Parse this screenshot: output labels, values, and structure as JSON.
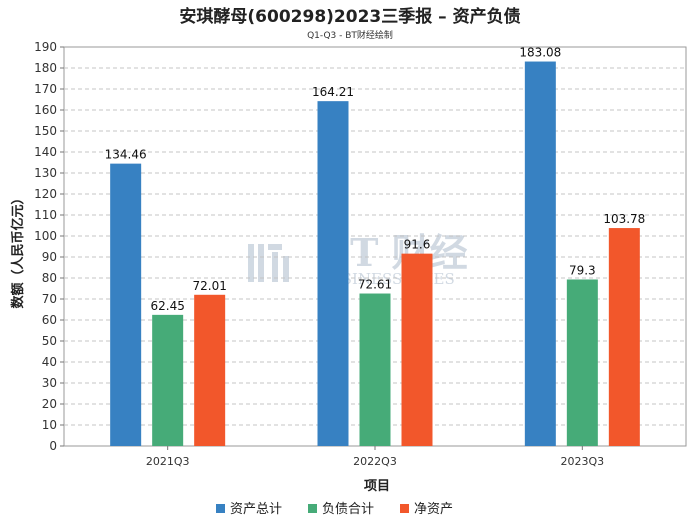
{
  "chart_data": {
    "type": "bar",
    "title": "安琪酵母(600298)2023三季报 – 资产负债",
    "subtitle": "Q1-Q3 - BT财经绘制",
    "xlabel": "项目",
    "ylabel": "数额（人民币亿元）",
    "ylim": [
      0,
      190
    ],
    "ytick_step": 10,
    "grid": true,
    "legend_position": "bottom",
    "categories": [
      "2021Q3",
      "2022Q3",
      "2023Q3"
    ],
    "series": [
      {
        "name": "资产总计",
        "color": "#3781c2",
        "values": [
          134.46,
          164.21,
          183.08
        ],
        "labels": [
          "134.46",
          "164.21",
          "183.08"
        ]
      },
      {
        "name": "负债合计",
        "color": "#46ab78",
        "values": [
          62.45,
          72.61,
          79.3
        ],
        "labels": [
          "62.45",
          "72.61",
          "79.3"
        ]
      },
      {
        "name": "净资产",
        "color": "#f2572b",
        "values": [
          72.01,
          91.6,
          103.78
        ],
        "labels": [
          "72.01",
          "91.6",
          "103.78"
        ]
      }
    ],
    "watermark": {
      "main": "BT 财经",
      "sub": "BUSINESSTIMES"
    }
  }
}
